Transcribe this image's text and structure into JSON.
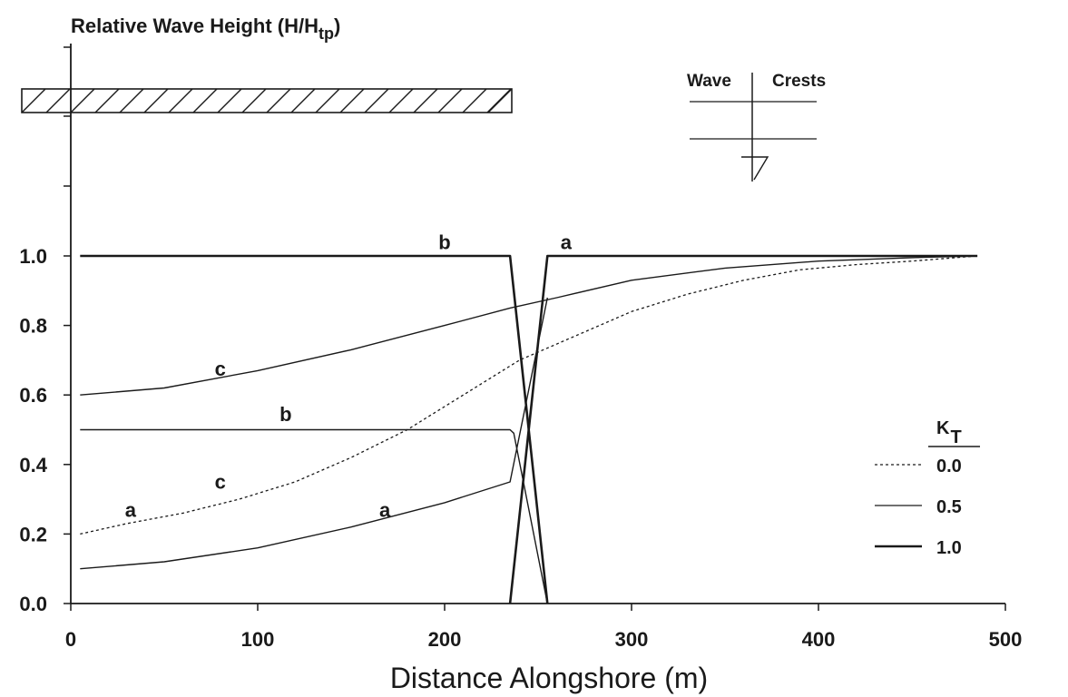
{
  "chart_data": {
    "type": "line",
    "ylabel_main": "Relative Wave Height (H/H",
    "ylabel_sub": "tp",
    "ylabel_close": ")",
    "xlabel": "Distance Alongshore (m)",
    "xlim": [
      0,
      500
    ],
    "ylim": [
      0,
      1.0
    ],
    "xticks": [
      "0",
      "100",
      "200",
      "300",
      "400",
      "500"
    ],
    "yticks": [
      "0.0",
      "0.2",
      "0.4",
      "0.6",
      "0.8",
      "1.0"
    ],
    "grid": false,
    "legend_title": "K",
    "legend_title_sub": "T",
    "legend_position": "right",
    "structure_label_1": "Wave",
    "structure_label_2": "Crests",
    "series": [
      {
        "name": "0.0",
        "style": "dotted",
        "x": [
          5,
          30,
          60,
          90,
          120,
          150,
          180,
          210,
          240,
          270,
          300,
          330,
          360,
          390,
          420,
          450,
          485
        ],
        "y": [
          0.2,
          0.23,
          0.26,
          0.3,
          0.35,
          0.42,
          0.5,
          0.6,
          0.7,
          0.77,
          0.84,
          0.89,
          0.93,
          0.96,
          0.975,
          0.985,
          1.0
        ]
      },
      {
        "name": "0.5",
        "style": "thin",
        "x": [
          5,
          50,
          100,
          150,
          200,
          235,
          260,
          300,
          350,
          400,
          450,
          485
        ],
        "y": [
          0.6,
          0.62,
          0.67,
          0.73,
          0.8,
          0.85,
          0.88,
          0.93,
          0.965,
          0.985,
          0.995,
          1.0
        ]
      },
      {
        "name": "0.5",
        "style": "thin",
        "x": [
          5,
          235,
          237,
          255
        ],
        "y": [
          0.5,
          0.5,
          0.49,
          0.0
        ]
      },
      {
        "name": "0.5",
        "style": "thin",
        "x": [
          5,
          50,
          100,
          150,
          200,
          235,
          255
        ],
        "y": [
          0.1,
          0.12,
          0.16,
          0.22,
          0.29,
          0.35,
          0.88
        ]
      },
      {
        "name": "1.0",
        "style": "thick",
        "x": [
          5,
          235,
          255
        ],
        "y": [
          1.0,
          1.0,
          0.0
        ]
      },
      {
        "name": "1.0",
        "style": "thick",
        "x": [
          235,
          255,
          485
        ],
        "y": [
          0.0,
          1.0,
          1.0
        ]
      }
    ],
    "curve_labels": [
      {
        "text": "b",
        "x": 200,
        "y": 1.02
      },
      {
        "text": "a",
        "x": 265,
        "y": 1.02
      },
      {
        "text": "c",
        "x": 80,
        "y": 0.655
      },
      {
        "text": "b",
        "x": 115,
        "y": 0.525
      },
      {
        "text": "c",
        "x": 80,
        "y": 0.33
      },
      {
        "text": "a",
        "x": 32,
        "y": 0.25
      },
      {
        "text": "a",
        "x": 168,
        "y": 0.25
      }
    ],
    "legend_entries": [
      "0.0",
      "0.5",
      "1.0"
    ]
  }
}
